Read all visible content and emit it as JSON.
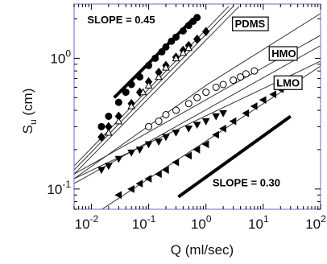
{
  "chart_data": {
    "type": "scatter",
    "xscale": "log",
    "yscale": "log",
    "xlim": [
      0.005,
      100
    ],
    "ylim": [
      0.07,
      2.6
    ],
    "xlabel": "Q (ml/sec)",
    "ylabel": {
      "main": "S",
      "sub": "u",
      "unit": " (cm)"
    },
    "x_ticks": [
      {
        "value": 0.01,
        "base": "10",
        "exp": "-2"
      },
      {
        "value": 0.1,
        "base": "10",
        "exp": "-1"
      },
      {
        "value": 1,
        "base": "10",
        "exp": "0"
      },
      {
        "value": 10,
        "base": "10",
        "exp": "1"
      },
      {
        "value": 100,
        "base": "10",
        "exp": "2"
      }
    ],
    "y_ticks": [
      {
        "value": 0.1,
        "base": "10",
        "exp": "-1"
      },
      {
        "value": 1,
        "base": "10",
        "exp": "0"
      }
    ],
    "frame_color": "#8a7fd6",
    "annotations": [
      {
        "text": "SLOPE = 0.45",
        "x": 0.0085,
        "y": 1.85,
        "style": "plain"
      },
      {
        "text": "SLOPE = 0.30",
        "x": 1.3,
        "y": 0.105,
        "style": "plain"
      },
      {
        "text": "PDMS",
        "x": 3.2,
        "y": 1.72,
        "style": "boxed"
      },
      {
        "text": "HMO",
        "x": 14,
        "y": 1.02,
        "style": "boxed"
      },
      {
        "text": "LMO",
        "x": 17,
        "y": 0.61,
        "style": "boxed"
      }
    ],
    "reference_lines": [
      {
        "slope": 0.45,
        "from": [
          0.025,
          0.5
        ],
        "to": [
          0.6,
          2.0
        ]
      },
      {
        "slope": 0.3,
        "from": [
          0.33,
          0.087
        ],
        "to": [
          30,
          0.36
        ]
      }
    ],
    "series": [
      {
        "marker": "circle-filled",
        "x": [
          0.015,
          0.02,
          0.03,
          0.04,
          0.05,
          0.07,
          0.1,
          0.13,
          0.17,
          0.2,
          0.25,
          0.3,
          0.4,
          0.5,
          0.6,
          0.7
        ],
        "y": [
          0.3,
          0.36,
          0.46,
          0.55,
          0.63,
          0.72,
          0.88,
          1.0,
          1.12,
          1.22,
          1.35,
          1.45,
          1.62,
          1.78,
          1.92,
          2.05
        ]
      },
      {
        "marker": "diamond-filled",
        "x": [
          0.015,
          0.02,
          0.03,
          0.05,
          0.07,
          0.1,
          0.15,
          0.2,
          0.3,
          0.4,
          0.5,
          0.7,
          1.0
        ],
        "y": [
          0.25,
          0.3,
          0.36,
          0.45,
          0.55,
          0.66,
          0.78,
          0.88,
          1.02,
          1.15,
          1.25,
          1.4,
          1.6
        ]
      },
      {
        "marker": "triangle-open",
        "x": [
          0.02,
          0.03,
          0.05,
          0.08,
          0.1,
          0.15,
          0.2,
          0.3,
          0.4,
          0.5
        ],
        "y": [
          0.27,
          0.33,
          0.43,
          0.55,
          0.62,
          0.72,
          0.85,
          1.0,
          1.1,
          1.2
        ]
      },
      {
        "marker": "circle-open",
        "x": [
          0.1,
          0.15,
          0.2,
          0.3,
          0.5,
          0.7,
          1.0,
          1.5,
          2.0,
          3.0,
          4.0,
          5.0,
          7.0
        ],
        "y": [
          0.3,
          0.33,
          0.37,
          0.4,
          0.45,
          0.5,
          0.55,
          0.6,
          0.63,
          0.68,
          0.72,
          0.76,
          0.8
        ]
      },
      {
        "marker": "triangle-down-filled",
        "x": [
          0.015,
          0.02,
          0.03,
          0.05,
          0.07,
          0.1,
          0.15,
          0.2,
          0.3,
          0.5,
          0.7,
          1.0,
          1.5,
          2.0
        ],
        "y": [
          0.14,
          0.15,
          0.17,
          0.19,
          0.2,
          0.22,
          0.23,
          0.25,
          0.27,
          0.29,
          0.31,
          0.33,
          0.36,
          0.38
        ]
      },
      {
        "marker": "triangle-left-filled",
        "x": [
          0.03,
          0.05,
          0.07,
          0.1,
          0.15,
          0.2,
          0.3,
          0.5,
          0.7,
          1.0,
          1.5,
          2.0,
          3.0,
          5.0,
          7.0,
          10,
          15,
          20
        ],
        "y": [
          0.09,
          0.1,
          0.11,
          0.12,
          0.13,
          0.14,
          0.16,
          0.18,
          0.2,
          0.22,
          0.26,
          0.29,
          0.33,
          0.38,
          0.43,
          0.48,
          0.53,
          0.58
        ]
      }
    ],
    "fit_lines": [
      {
        "from": [
          0.005,
          0.15
        ],
        "to": [
          2.5,
          2.5
        ]
      },
      {
        "from": [
          0.005,
          0.14
        ],
        "to": [
          3.0,
          2.5
        ]
      },
      {
        "from": [
          0.005,
          0.13
        ],
        "to": [
          3.8,
          2.5
        ]
      },
      {
        "from": [
          0.005,
          0.12
        ],
        "to": [
          1.0,
          0.62
        ],
        "then": [
          100,
          2.2
        ]
      },
      {
        "from": [
          0.005,
          0.13
        ],
        "to": [
          100,
          1.5
        ]
      },
      {
        "from": [
          0.005,
          0.11
        ],
        "to": [
          100,
          1.25
        ]
      },
      {
        "from": [
          0.005,
          0.12
        ],
        "to": [
          100,
          0.95
        ]
      },
      {
        "from": [
          0.01,
          0.062
        ],
        "to": [
          100,
          0.87
        ]
      }
    ]
  }
}
